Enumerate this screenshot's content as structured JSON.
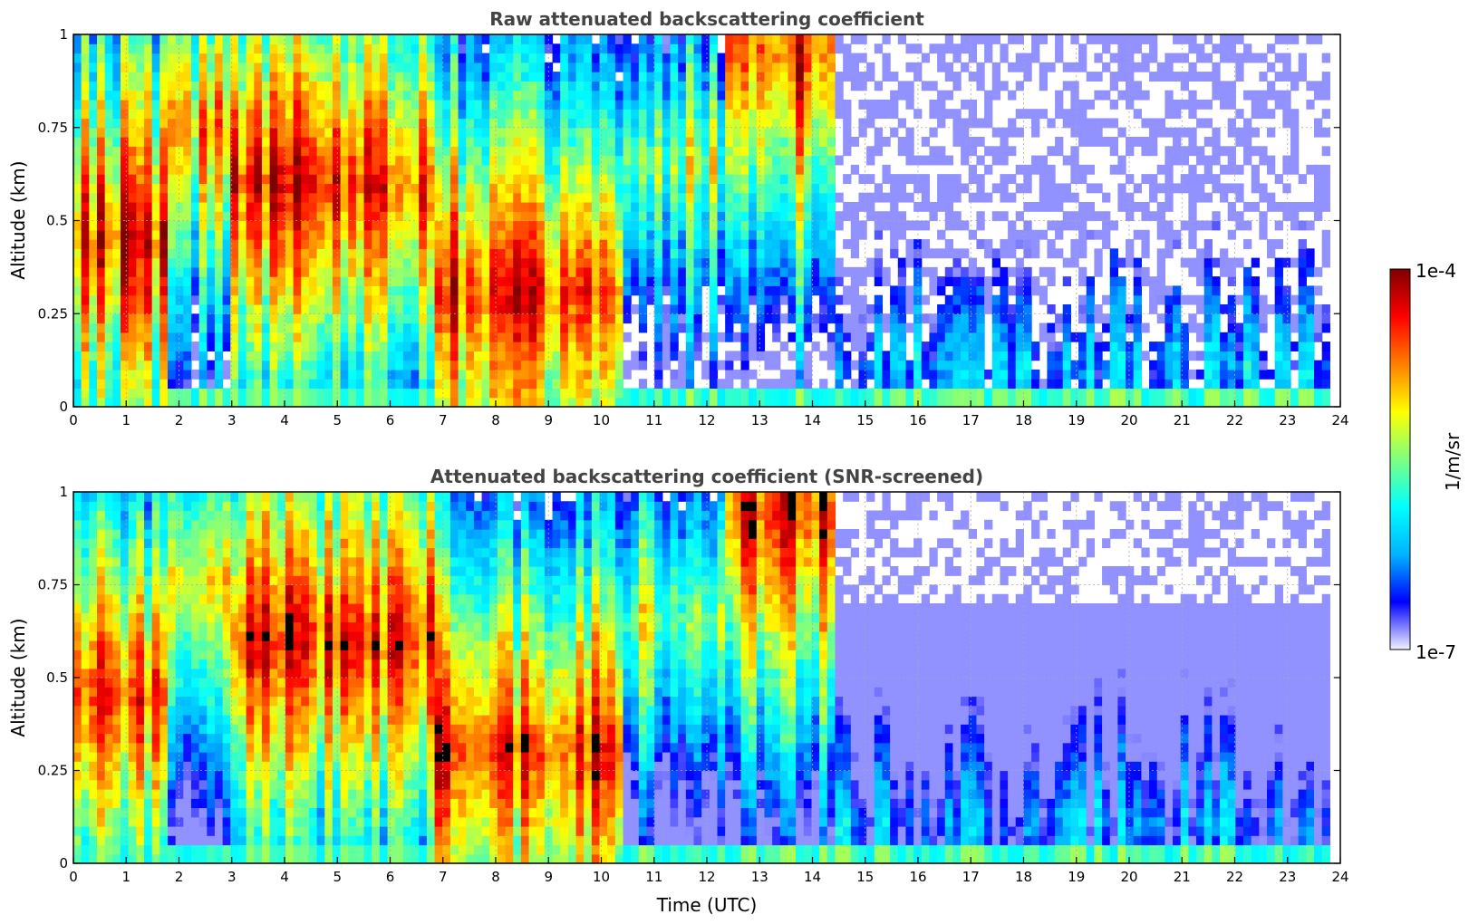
{
  "chart_data": [
    {
      "type": "heatmap",
      "title": "Raw attenuated backscattering coefficient",
      "xlabel": "",
      "ylabel": "Altitude (km)",
      "xlim": [
        0,
        24
      ],
      "ylim": [
        0,
        1
      ],
      "x_ticks": [
        "0",
        "1",
        "2",
        "3",
        "4",
        "5",
        "6",
        "7",
        "8",
        "9",
        "10",
        "11",
        "12",
        "13",
        "14",
        "15",
        "16",
        "17",
        "18",
        "19",
        "20",
        "21",
        "22",
        "23",
        "24"
      ],
      "y_ticks": [
        "0",
        "0.25",
        "0.5",
        "0.75",
        "1"
      ],
      "grid": true,
      "colormap": "jet",
      "x_data_end": 23.8,
      "value_field": "log10 attenuated backscatter (1/m/sr)",
      "regime_profiles": [
        {
          "x_range": [
            0,
            1.8
          ],
          "level": "high",
          "peak_alt_km": 0.45
        },
        {
          "x_range": [
            1.8,
            3.0
          ],
          "level": "mixed",
          "peak_alt_km": 0.75
        },
        {
          "x_range": [
            3.0,
            6.8
          ],
          "level": "high",
          "peak_alt_km": 0.6
        },
        {
          "x_range": [
            6.8,
            10.4
          ],
          "level": "high",
          "peak_alt_km": 0.3
        },
        {
          "x_range": [
            10.4,
            12.4
          ],
          "level": "medium",
          "peak_alt_km": 0.65
        },
        {
          "x_range": [
            12.4,
            14.5
          ],
          "level": "high",
          "peak_alt_km": 0.95
        },
        {
          "x_range": [
            14.5,
            23.8
          ],
          "level": "low",
          "peak_alt_km": 0.1
        }
      ]
    },
    {
      "type": "heatmap",
      "title": "Attenuated backscattering coefficient (SNR-screened)",
      "xlabel": "Time (UTC)",
      "ylabel": "Altitude (km)",
      "xlim": [
        0,
        24
      ],
      "ylim": [
        0,
        1
      ],
      "x_ticks": [
        "0",
        "1",
        "2",
        "3",
        "4",
        "5",
        "6",
        "7",
        "8",
        "9",
        "10",
        "11",
        "12",
        "13",
        "14",
        "15",
        "16",
        "17",
        "18",
        "19",
        "20",
        "21",
        "22",
        "23",
        "24"
      ],
      "y_ticks": [
        "0",
        "0.25",
        "0.5",
        "0.75",
        "1"
      ],
      "grid": true,
      "colormap": "jet",
      "x_data_end": 23.8,
      "screened": true,
      "saturated_color": "#000000"
    }
  ],
  "colorbar": {
    "label": "1/m/sr",
    "max_label": "1e-4",
    "min_label": "1e-7",
    "stops": [
      "#f2f2ff",
      "#0000ff",
      "#00b4ff",
      "#00ffff",
      "#7fff7f",
      "#ffff00",
      "#ff7f00",
      "#ff0000",
      "#7f0000"
    ]
  },
  "colors": {
    "background": "#ffffff",
    "missing": "#ffffff",
    "title": "#444444"
  }
}
